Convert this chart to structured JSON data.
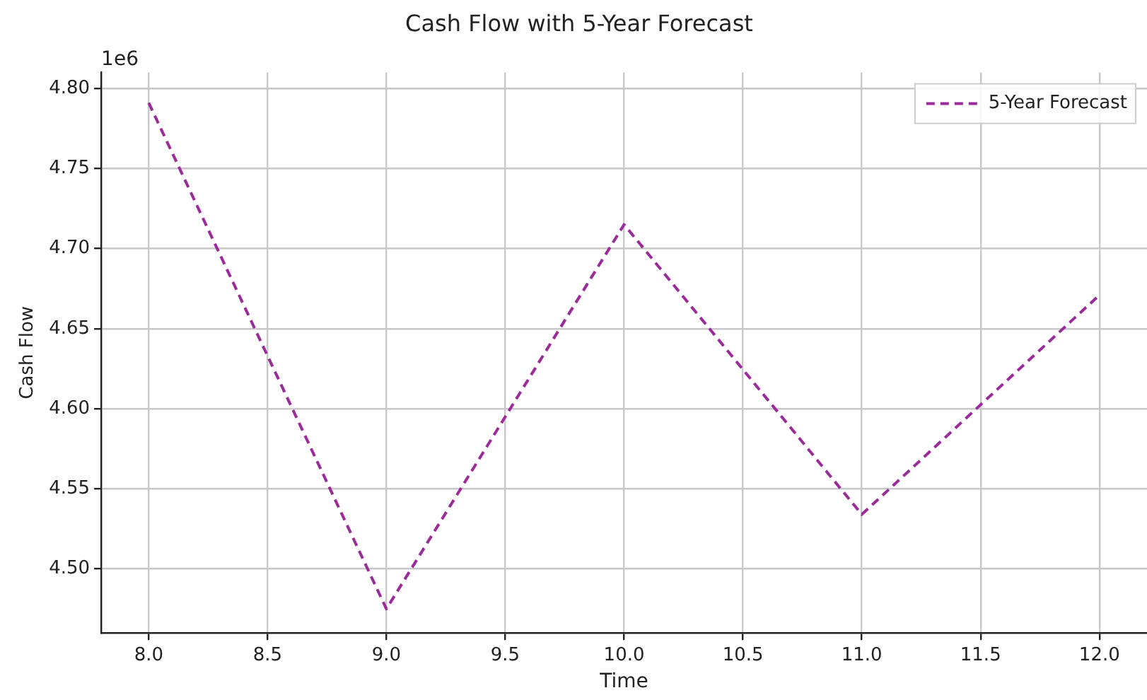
{
  "chart_data": {
    "type": "line",
    "title": "Cash Flow with 5-Year Forecast",
    "xlabel": "Time",
    "ylabel": "Cash Flow",
    "annotations": [
      "1e6"
    ],
    "series": [
      {
        "name": "5-Year Forecast",
        "color": "#9b2a9b",
        "x": [
          8,
          9,
          10,
          11,
          12
        ],
        "values": [
          4.791,
          4.475,
          4.715,
          4.534,
          4.671
        ]
      }
    ],
    "xlim": [
      7.8,
      12.2
    ],
    "xticks": [
      {
        "value": 8,
        "label": "8.0"
      },
      {
        "value": 8.5,
        "label": "8.5"
      },
      {
        "value": 9,
        "label": "9.0"
      },
      {
        "value": 9.5,
        "label": "9.5"
      },
      {
        "value": 10,
        "label": "10.0"
      },
      {
        "value": 10.5,
        "label": "10.5"
      },
      {
        "value": 11,
        "label": "11.0"
      },
      {
        "value": 11.5,
        "label": "11.5"
      },
      {
        "value": 12,
        "label": "12.0"
      }
    ],
    "ylim": [
      4.46,
      4.81
    ],
    "yticks": [
      {
        "value": 4.5,
        "label": "4.50"
      },
      {
        "value": 4.55,
        "label": "4.55"
      },
      {
        "value": 4.6,
        "label": "4.60"
      },
      {
        "value": 4.65,
        "label": "4.65"
      },
      {
        "value": 4.7,
        "label": "4.70"
      },
      {
        "value": 4.75,
        "label": "4.75"
      },
      {
        "value": 4.8,
        "label": "4.80"
      }
    ],
    "grid": true,
    "legend": "top right",
    "marker": "none",
    "line_style": "dashed"
  }
}
